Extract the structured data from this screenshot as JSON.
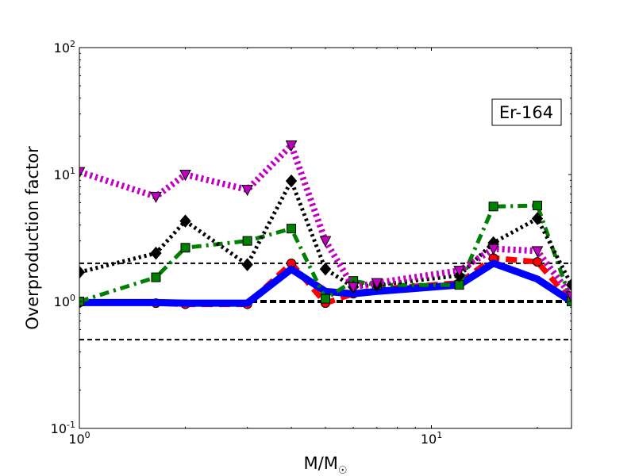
{
  "chart_data": {
    "type": "line",
    "title": "",
    "annotation": "Er-164",
    "xlabel": "M/M",
    "xlabel_symbol": "☉",
    "ylabel": "Overproduction factor",
    "xscale": "log",
    "yscale": "log",
    "xlim": [
      1,
      25
    ],
    "ylim": [
      0.1,
      100
    ],
    "x_ticks": [
      {
        "value": 1,
        "base": "10",
        "exp": "0"
      },
      {
        "value": 10,
        "base": "10",
        "exp": "1"
      }
    ],
    "y_ticks": [
      {
        "value": 0.1,
        "base": "10",
        "exp": "-1"
      },
      {
        "value": 1,
        "base": "10",
        "exp": "0"
      },
      {
        "value": 10,
        "base": "10",
        "exp": "1"
      },
      {
        "value": 100,
        "base": "10",
        "exp": "2"
      }
    ],
    "reference_lines": [
      {
        "y": 2.0,
        "dash": "6,4",
        "width": 2,
        "color": "#000000"
      },
      {
        "y": 1.0,
        "dash": "8,4",
        "width": 4,
        "color": "#000000"
      },
      {
        "y": 0.5,
        "dash": "6,4",
        "width": 2,
        "color": "#000000"
      }
    ],
    "legend": "none",
    "grid": false,
    "series": [
      {
        "color": "#ff0000",
        "marker": "circle",
        "line_style": "dashed",
        "line_width": 7,
        "x": [
          1,
          1.65,
          2,
          3,
          4,
          5,
          6,
          7,
          12,
          15,
          20,
          25
        ],
        "y": [
          0.98,
          0.97,
          0.95,
          0.95,
          2.0,
          0.97,
          1.15,
          1.25,
          1.4,
          2.2,
          2.05,
          1.0
        ]
      },
      {
        "color": "#0000ff",
        "marker": "none",
        "line_style": "solid",
        "line_width": 9,
        "x": [
          1,
          1.65,
          2,
          3,
          4,
          5,
          6,
          7,
          12,
          15,
          20,
          25
        ],
        "y": [
          0.98,
          0.98,
          0.97,
          0.97,
          1.8,
          1.2,
          1.15,
          1.2,
          1.35,
          2.0,
          1.5,
          1.0
        ]
      },
      {
        "color": "#008000",
        "marker": "square",
        "line_style": "dashdot",
        "line_width": 5,
        "x": [
          1,
          1.65,
          2,
          3,
          4,
          5,
          6,
          7,
          12,
          15,
          20,
          25
        ],
        "y": [
          1.0,
          1.55,
          2.65,
          3.0,
          3.75,
          1.05,
          1.45,
          1.35,
          1.35,
          5.6,
          5.7,
          1.0
        ]
      },
      {
        "color": "#000000",
        "marker": "diamond",
        "line_style": "dotted",
        "line_width": 5,
        "x": [
          1,
          1.65,
          2,
          3,
          4,
          5,
          6,
          7,
          12,
          15,
          20,
          25
        ],
        "y": [
          1.7,
          2.4,
          4.3,
          1.95,
          8.9,
          1.8,
          1.3,
          1.35,
          1.6,
          2.9,
          4.5,
          1.35
        ]
      },
      {
        "color": "#bf00bf",
        "marker": "triangle-down",
        "line_style": "dotted",
        "line_width": 8,
        "x": [
          1,
          1.65,
          2,
          3,
          4,
          5,
          6,
          7,
          12,
          15,
          20,
          25
        ],
        "y": [
          10.5,
          6.7,
          10.0,
          7.6,
          17.0,
          3.0,
          1.3,
          1.4,
          1.75,
          2.6,
          2.5,
          1.1
        ]
      }
    ]
  }
}
